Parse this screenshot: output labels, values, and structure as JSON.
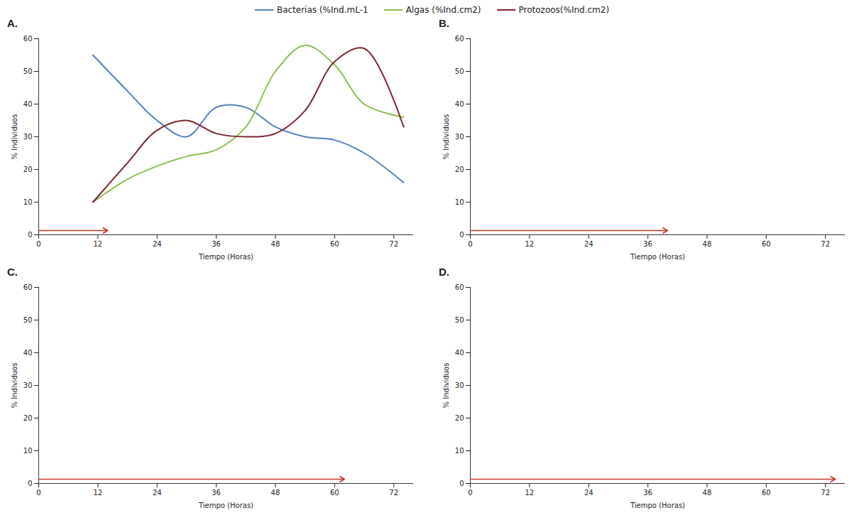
{
  "chart_data": [
    {
      "type": "line",
      "title": "A.",
      "x_label": "Tiempo (Horas)",
      "y_label": "% Individuos",
      "xlim": [
        0,
        76
      ],
      "xticks": [
        0,
        12,
        24,
        36,
        48,
        60,
        72
      ],
      "ylim": [
        0,
        60
      ],
      "yticks": [
        0,
        10,
        20,
        30,
        40,
        50,
        60
      ],
      "arrow_end": 14,
      "line_style": "smooth",
      "legend": "top",
      "x": [
        11,
        18,
        24,
        30,
        36,
        42,
        48,
        54,
        60,
        66,
        74
      ],
      "series": [
        {
          "name": "Bacterias (%Ind.mL-1",
          "color": "#4f81bd",
          "values": [
            55,
            44,
            35,
            30,
            39,
            39,
            33,
            30,
            29,
            25,
            16
          ]
        },
        {
          "name": "Algas (%Ind.cm2)",
          "color": "#8cbf4f",
          "values": [
            10,
            17,
            21,
            24,
            26,
            33,
            50,
            58,
            52,
            40,
            36
          ]
        },
        {
          "name": "Protozoos(%Ind.cm2)",
          "color": "#7a2630",
          "values": [
            10,
            22,
            32,
            35,
            31,
            30,
            31,
            38,
            53,
            57,
            33
          ]
        }
      ]
    },
    {
      "type": "line",
      "title": "B.",
      "x_label": "Tiempo (Horas)",
      "y_label": "% Individuos",
      "xlim": [
        0,
        76
      ],
      "xticks": [
        0,
        12,
        24,
        36,
        48,
        60,
        72
      ],
      "ylim": [
        0,
        60
      ],
      "yticks": [
        0,
        10,
        20,
        30,
        40,
        50,
        60
      ],
      "arrow_end": 40,
      "x": [],
      "series": []
    },
    {
      "type": "line",
      "title": "C.",
      "x_label": "Tiempo (Horas)",
      "y_label": "% Individuos",
      "xlim": [
        0,
        76
      ],
      "xticks": [
        0,
        12,
        24,
        36,
        48,
        60,
        72
      ],
      "ylim": [
        0,
        60
      ],
      "yticks": [
        0,
        10,
        20,
        30,
        40,
        50,
        60
      ],
      "arrow_end": 62,
      "x": [],
      "series": []
    },
    {
      "type": "line",
      "title": "D.",
      "x_label": "Tiempo (Horas)",
      "y_label": "% Individuos",
      "xlim": [
        0,
        76
      ],
      "xticks": [
        0,
        12,
        24,
        36,
        48,
        60,
        72
      ],
      "ylim": [
        0,
        60
      ],
      "yticks": [
        0,
        10,
        20,
        30,
        40,
        50,
        60
      ],
      "arrow_end": 74,
      "x": [],
      "series": []
    }
  ]
}
